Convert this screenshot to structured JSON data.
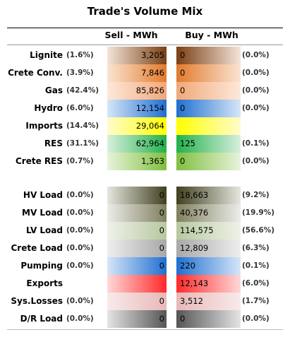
{
  "title": "Trade's Volume Mix",
  "columns": {
    "sell": "Sell - MWh",
    "buy": "Buy - MWh"
  },
  "rows": [
    {
      "label": "Lignite",
      "sell_pct": "(1.6%)",
      "sell": "3,205",
      "buy": "0",
      "buy_pct": "(0.0%)",
      "color": "#7a3f14",
      "bg": "#f4e4d8"
    },
    {
      "label": "Crete Conv.",
      "sell_pct": "(3.9%)",
      "sell": "7,846",
      "buy": "0",
      "buy_pct": "(0.0%)",
      "color": "#e27a2c",
      "bg": "#fbe4d2"
    },
    {
      "label": "Gas",
      "sell_pct": "(42.4%)",
      "sell": "85,826",
      "buy": "0",
      "buy_pct": "(0.0%)",
      "color": "#f2a877",
      "bg": "#fde8da"
    },
    {
      "label": "Hydro",
      "sell_pct": "(6.0%)",
      "sell": "12,154",
      "buy": "0",
      "buy_pct": "(0.0%)",
      "color": "#1f6fd0",
      "bg": "#d6e6f8"
    },
    {
      "label": "Imports",
      "sell_pct": "(14.4%)",
      "sell": "29,064",
      "buy": "",
      "buy_pct": "",
      "color": "#ffff00",
      "bg": "#fffccc"
    },
    {
      "label": "RES",
      "sell_pct": "(31.1%)",
      "sell": "62,964",
      "buy": "125",
      "buy_pct": "(0.1%)",
      "color": "#22b14c",
      "bg": "#d8f0dd"
    },
    {
      "label": "Crete RES",
      "sell_pct": "(0.7%)",
      "sell": "1,363",
      "buy": "0",
      "buy_pct": "(0.0%)",
      "color": "#7fbf3f",
      "bg": "#e8f3da"
    },
    {
      "label": "HV Load",
      "sell_pct": "(0.0%)",
      "sell": "0",
      "buy": "18,663",
      "buy_pct": "(9.2%)",
      "color": "#3f3f1f",
      "bg": "#e6e6df"
    },
    {
      "label": "MV Load",
      "sell_pct": "(0.0%)",
      "sell": "0",
      "buy": "40,376",
      "buy_pct": "(19.9%)",
      "color": "#7f7f5f",
      "bg": "#ececea"
    },
    {
      "label": "LV Load",
      "sell_pct": "(0.0%)",
      "sell": "0",
      "buy": "114,575",
      "buy_pct": "(56.6%)",
      "color": "#b7c8a0",
      "bg": "#eef2e8"
    },
    {
      "label": "Crete Load",
      "sell_pct": "(0.0%)",
      "sell": "0",
      "buy": "12,809",
      "buy_pct": "(6.3%)",
      "color": "#a8a8a8",
      "bg": "#eeeeee"
    },
    {
      "label": "Pumping",
      "sell_pct": "(0.0%)",
      "sell": "0",
      "buy": "220",
      "buy_pct": "(0.1%)",
      "color": "#1f6fd0",
      "bg": "#d6e6f8"
    },
    {
      "label": "Exports",
      "sell_pct": "",
      "sell": "",
      "buy": "12,143",
      "buy_pct": "(6.0%)",
      "color": "#ff2a2a",
      "bg": "#ffd8d8"
    },
    {
      "label": "Sys.Losses",
      "sell_pct": "(0.0%)",
      "sell": "0",
      "buy": "3,512",
      "buy_pct": "(1.7%)",
      "color": "#e8b8b8",
      "bg": "#f8eaea"
    },
    {
      "label": "D/R Load",
      "sell_pct": "(0.0%)",
      "sell": "0",
      "buy": "0",
      "buy_pct": "(0.0%)",
      "color": "#555555",
      "bg": "#e4e4e4"
    }
  ]
}
